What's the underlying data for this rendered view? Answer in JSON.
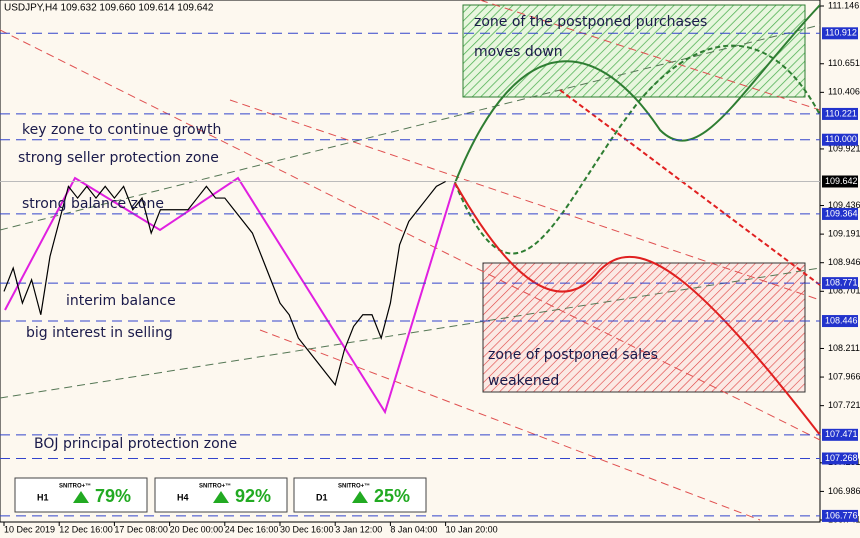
{
  "header": "USDJPY,H4  109.632 109.660 109.614 109.642",
  "chart_data": {
    "type": "line",
    "color": "#000000",
    "categories": [
      "10 Dec 2019",
      null,
      null,
      null,
      null,
      null,
      "12 Dec 16:00",
      null,
      null,
      null,
      null,
      null,
      "17 Dec 08:00",
      null,
      null,
      null,
      null,
      null,
      "20 Dec 00:00",
      null,
      null,
      null,
      null,
      null,
      "24 Dec 16:00",
      null,
      null,
      null,
      null,
      null,
      "30 Dec 16:00",
      null,
      null,
      null,
      null,
      null,
      "3 Jan 12:00",
      null,
      null,
      null,
      null,
      null,
      "8 Jan 04:00",
      null,
      null,
      null,
      null,
      null,
      "10 Jan 20:00"
    ],
    "values": [
      108.7,
      108.9,
      108.6,
      108.8,
      108.5,
      109.0,
      109.3,
      109.6,
      109.5,
      109.6,
      109.5,
      109.6,
      109.5,
      109.6,
      109.4,
      109.5,
      109.2,
      109.4,
      109.4,
      109.4,
      109.4,
      109.5,
      109.6,
      109.5,
      109.5,
      109.4,
      109.3,
      109.2,
      109.0,
      108.8,
      108.6,
      108.5,
      108.3,
      108.2,
      108.1,
      108.0,
      107.9,
      108.2,
      108.4,
      108.5,
      108.5,
      108.3,
      108.6,
      109.1,
      109.3,
      109.4,
      109.5,
      109.6,
      109.642
    ],
    "ylim": [
      106.741,
      111.146
    ],
    "yticks": [
      111.146,
      110.651,
      110.406,
      109.921,
      109.436,
      109.191,
      108.946,
      108.701,
      108.211,
      107.966,
      107.721,
      107.231,
      106.986,
      106.741
    ],
    "levels": [
      110.912,
      110.221,
      {
        "value": 110,
        "label": "110.000"
      },
      109.364,
      108.771,
      108.446,
      107.471,
      107.268,
      106.776
    ],
    "current_price": 109.642,
    "annotations": [
      "zone of the postponed purchases",
      "moves down",
      "key zone to continue growth",
      "strong seller protection zone",
      "strong balance zone",
      "interim balance",
      "big interest in selling",
      "zone of postponed sales",
      "weakened",
      "BOJ principal protection zone"
    ]
  },
  "widgets": [
    {
      "brand": "SNITRO+™",
      "timeframe": "H1",
      "percent": "79%"
    },
    {
      "brand": "SNITRO+™",
      "timeframe": "H4",
      "percent": "92%"
    },
    {
      "brand": "SNITRO+™",
      "timeframe": "D1",
      "percent": "25%"
    }
  ]
}
